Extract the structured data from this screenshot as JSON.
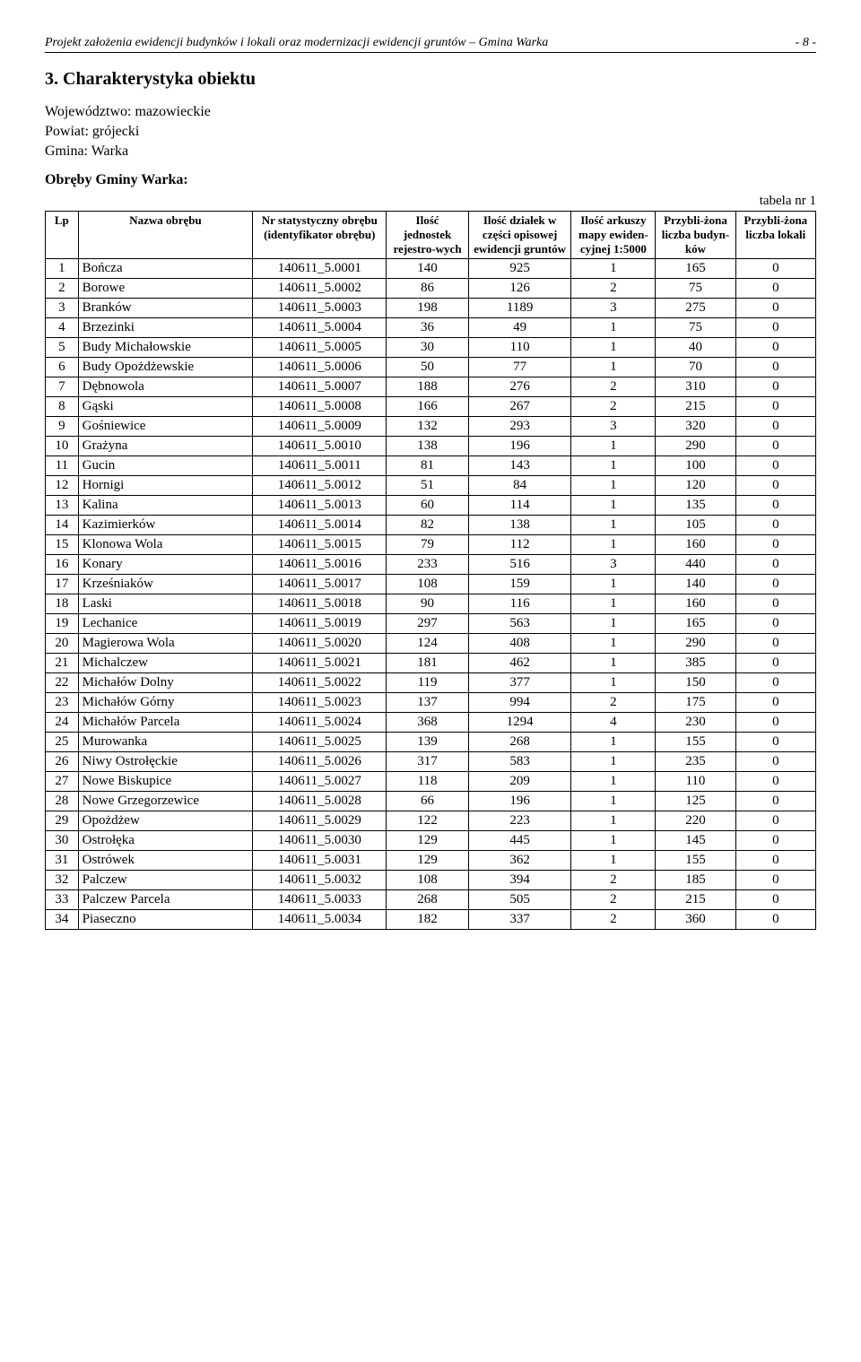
{
  "header": {
    "title_left": "Projekt  założenia ewidencji budynków i lokali oraz modernizacji ewidencji gruntów – Gmina Warka",
    "page_no": "- 8 -"
  },
  "section": {
    "heading": "3. Charakterystyka obiektu",
    "wojewodztwo_label": "Województwo: mazowieckie",
    "powiat_label": "Powiat: grójecki",
    "gmina_label": "Gmina: Warka",
    "subheading": "Obręby Gminy Warka:",
    "table_caption": "tabela nr 1"
  },
  "table": {
    "columns": [
      "Lp",
      "Nazwa obrębu",
      "Nr statystyczny obrębu (identyfikator obrębu)",
      "Ilość jednostek rejestro-wych",
      "Ilość działek w części opisowej ewidencji gruntów",
      "Ilość arkuszy mapy ewiden-cyjnej 1:5000",
      "Przybli-żona liczba budyn-ków",
      "Przybli-żona liczba lokali"
    ],
    "rows": [
      [
        "1",
        "Bończa",
        "140611_5.0001",
        "140",
        "925",
        "1",
        "165",
        "0"
      ],
      [
        "2",
        "Borowe",
        "140611_5.0002",
        "86",
        "126",
        "2",
        "75",
        "0"
      ],
      [
        "3",
        "Branków",
        "140611_5.0003",
        "198",
        "1189",
        "3",
        "275",
        "0"
      ],
      [
        "4",
        "Brzezinki",
        "140611_5.0004",
        "36",
        "49",
        "1",
        "75",
        "0"
      ],
      [
        "5",
        "Budy Michałowskie",
        "140611_5.0005",
        "30",
        "110",
        "1",
        "40",
        "0"
      ],
      [
        "6",
        "Budy Opożdżewskie",
        "140611_5.0006",
        "50",
        "77",
        "1",
        "70",
        "0"
      ],
      [
        "7",
        "Dębnowola",
        "140611_5.0007",
        "188",
        "276",
        "2",
        "310",
        "0"
      ],
      [
        "8",
        "Gąski",
        "140611_5.0008",
        "166",
        "267",
        "2",
        "215",
        "0"
      ],
      [
        "9",
        "Gośniewice",
        "140611_5.0009",
        "132",
        "293",
        "3",
        "320",
        "0"
      ],
      [
        "10",
        "Grażyna",
        "140611_5.0010",
        "138",
        "196",
        "1",
        "290",
        "0"
      ],
      [
        "11",
        "Gucin",
        "140611_5.0011",
        "81",
        "143",
        "1",
        "100",
        "0"
      ],
      [
        "12",
        "Hornigi",
        "140611_5.0012",
        "51",
        "84",
        "1",
        "120",
        "0"
      ],
      [
        "13",
        "Kalina",
        "140611_5.0013",
        "60",
        "114",
        "1",
        "135",
        "0"
      ],
      [
        "14",
        "Kazimierków",
        "140611_5.0014",
        "82",
        "138",
        "1",
        "105",
        "0"
      ],
      [
        "15",
        "Klonowa Wola",
        "140611_5.0015",
        "79",
        "112",
        "1",
        "160",
        "0"
      ],
      [
        "16",
        "Konary",
        "140611_5.0016",
        "233",
        "516",
        "3",
        "440",
        "0"
      ],
      [
        "17",
        "Krześniaków",
        "140611_5.0017",
        "108",
        "159",
        "1",
        "140",
        "0"
      ],
      [
        "18",
        "Laski",
        "140611_5.0018",
        "90",
        "116",
        "1",
        "160",
        "0"
      ],
      [
        "19",
        "Lechanice",
        "140611_5.0019",
        "297",
        "563",
        "1",
        "165",
        "0"
      ],
      [
        "20",
        "Magierowa Wola",
        "140611_5.0020",
        "124",
        "408",
        "1",
        "290",
        "0"
      ],
      [
        "21",
        "Michalczew",
        "140611_5.0021",
        "181",
        "462",
        "1",
        "385",
        "0"
      ],
      [
        "22",
        "Michałów Dolny",
        "140611_5.0022",
        "119",
        "377",
        "1",
        "150",
        "0"
      ],
      [
        "23",
        "Michałów Górny",
        "140611_5.0023",
        "137",
        "994",
        "2",
        "175",
        "0"
      ],
      [
        "24",
        "Michałów Parcela",
        "140611_5.0024",
        "368",
        "1294",
        "4",
        "230",
        "0"
      ],
      [
        "25",
        "Murowanka",
        "140611_5.0025",
        "139",
        "268",
        "1",
        "155",
        "0"
      ],
      [
        "26",
        "Niwy Ostrołęckie",
        "140611_5.0026",
        "317",
        "583",
        "1",
        "235",
        "0"
      ],
      [
        "27",
        "Nowe Biskupice",
        "140611_5.0027",
        "118",
        "209",
        "1",
        "110",
        "0"
      ],
      [
        "28",
        "Nowe Grzegorzewice",
        "140611_5.0028",
        "66",
        "196",
        "1",
        "125",
        "0"
      ],
      [
        "29",
        "Opożdżew",
        "140611_5.0029",
        "122",
        "223",
        "1",
        "220",
        "0"
      ],
      [
        "30",
        "Ostrołęka",
        "140611_5.0030",
        "129",
        "445",
        "1",
        "145",
        "0"
      ],
      [
        "31",
        "Ostrówek",
        "140611_5.0031",
        "129",
        "362",
        "1",
        "155",
        "0"
      ],
      [
        "32",
        "Palczew",
        "140611_5.0032",
        "108",
        "394",
        "2",
        "185",
        "0"
      ],
      [
        "33",
        "Palczew Parcela",
        "140611_5.0033",
        "268",
        "505",
        "2",
        "215",
        "0"
      ],
      [
        "34",
        "Piaseczno",
        "140611_5.0034",
        "182",
        "337",
        "2",
        "360",
        "0"
      ]
    ]
  }
}
